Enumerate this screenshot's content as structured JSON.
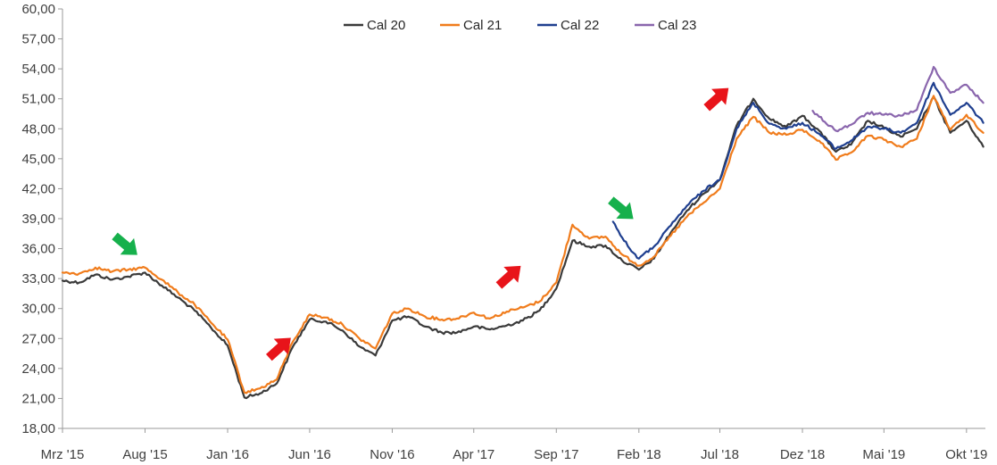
{
  "chart_data": {
    "type": "line",
    "title": "",
    "xlabel": "",
    "ylabel": "",
    "ylim": [
      18,
      60
    ],
    "y_ticks": [
      18,
      21,
      24,
      27,
      30,
      33,
      36,
      39,
      42,
      45,
      48,
      51,
      54,
      57,
      60
    ],
    "y_tick_labels": [
      "18,00",
      "21,00",
      "24,00",
      "27,00",
      "30,00",
      "33,00",
      "36,00",
      "39,00",
      "42,00",
      "45,00",
      "48,00",
      "51,00",
      "54,00",
      "57,00",
      "60,00"
    ],
    "x_range": [
      "2015-03-01",
      "2019-11-05"
    ],
    "x_ticks": [
      {
        "date": "2015-03-01",
        "label": "Mrz '15"
      },
      {
        "date": "2015-08-01",
        "label": "Aug '15"
      },
      {
        "date": "2016-01-01",
        "label": "Jan '16"
      },
      {
        "date": "2016-06-01",
        "label": "Jun '16"
      },
      {
        "date": "2016-11-01",
        "label": "Nov '16"
      },
      {
        "date": "2017-04-01",
        "label": "Apr '17"
      },
      {
        "date": "2017-09-01",
        "label": "Sep '17"
      },
      {
        "date": "2018-02-01",
        "label": "Feb '18"
      },
      {
        "date": "2018-07-01",
        "label": "Jul '18"
      },
      {
        "date": "2018-12-01",
        "label": "Dez '18"
      },
      {
        "date": "2019-05-01",
        "label": "Mai '19"
      },
      {
        "date": "2019-10-01",
        "label": "Okt '19"
      }
    ],
    "grid": false,
    "legend_position": "top",
    "series": [
      {
        "name": "Cal 20",
        "color": "#3a3a3a",
        "points": [
          [
            "2015-03-01",
            32.8
          ],
          [
            "2015-04-01",
            32.6
          ],
          [
            "2015-05-01",
            33.4
          ],
          [
            "2015-06-01",
            32.9
          ],
          [
            "2015-07-01",
            33.2
          ],
          [
            "2015-08-01",
            33.6
          ],
          [
            "2015-09-01",
            32.3
          ],
          [
            "2015-10-01",
            31.1
          ],
          [
            "2015-11-01",
            29.8
          ],
          [
            "2015-12-01",
            28.1
          ],
          [
            "2016-01-01",
            26.3
          ],
          [
            "2016-02-01",
            21.1
          ],
          [
            "2016-03-01",
            21.5
          ],
          [
            "2016-04-01",
            22.5
          ],
          [
            "2016-05-01",
            26.2
          ],
          [
            "2016-06-01",
            28.9
          ],
          [
            "2016-07-01",
            28.7
          ],
          [
            "2016-08-01",
            27.8
          ],
          [
            "2016-09-01",
            26.2
          ],
          [
            "2016-10-01",
            25.3
          ],
          [
            "2016-11-01",
            28.8
          ],
          [
            "2016-12-01",
            29.2
          ],
          [
            "2017-01-01",
            28.2
          ],
          [
            "2017-02-01",
            27.6
          ],
          [
            "2017-03-01",
            27.6
          ],
          [
            "2017-04-01",
            28.2
          ],
          [
            "2017-05-01",
            27.9
          ],
          [
            "2017-06-01",
            28.3
          ],
          [
            "2017-07-01",
            28.8
          ],
          [
            "2017-08-01",
            29.8
          ],
          [
            "2017-09-01",
            32.0
          ],
          [
            "2017-10-01",
            36.8
          ],
          [
            "2017-11-01",
            36.2
          ],
          [
            "2017-12-01",
            36.3
          ],
          [
            "2018-01-01",
            34.8
          ],
          [
            "2018-02-01",
            33.9
          ],
          [
            "2018-03-01",
            35.0
          ],
          [
            "2018-04-01",
            37.6
          ],
          [
            "2018-05-01",
            39.8
          ],
          [
            "2018-06-01",
            41.5
          ],
          [
            "2018-07-01",
            42.9
          ],
          [
            "2018-08-01",
            48.3
          ],
          [
            "2018-09-01",
            51.0
          ],
          [
            "2018-10-01",
            49.0
          ],
          [
            "2018-11-01",
            48.2
          ],
          [
            "2018-12-01",
            49.3
          ],
          [
            "2019-01-01",
            47.8
          ],
          [
            "2019-02-01",
            45.7
          ],
          [
            "2019-03-01",
            46.4
          ],
          [
            "2019-04-01",
            48.8
          ],
          [
            "2019-05-01",
            48.1
          ],
          [
            "2019-06-01",
            47.2
          ],
          [
            "2019-07-01",
            48.0
          ],
          [
            "2019-08-01",
            51.2
          ],
          [
            "2019-09-01",
            47.6
          ],
          [
            "2019-10-01",
            48.8
          ],
          [
            "2019-11-01",
            46.2
          ]
        ]
      },
      {
        "name": "Cal 21",
        "color": "#f07c1c",
        "points": [
          [
            "2015-03-01",
            33.6
          ],
          [
            "2015-04-01",
            33.5
          ],
          [
            "2015-05-01",
            34.1
          ],
          [
            "2015-06-01",
            33.7
          ],
          [
            "2015-07-01",
            33.9
          ],
          [
            "2015-08-01",
            34.1
          ],
          [
            "2015-09-01",
            32.9
          ],
          [
            "2015-10-01",
            31.6
          ],
          [
            "2015-11-01",
            30.4
          ],
          [
            "2015-12-01",
            28.6
          ],
          [
            "2016-01-01",
            26.9
          ],
          [
            "2016-02-01",
            21.6
          ],
          [
            "2016-03-01",
            22.0
          ],
          [
            "2016-04-01",
            22.9
          ],
          [
            "2016-05-01",
            26.7
          ],
          [
            "2016-06-01",
            29.4
          ],
          [
            "2016-07-01",
            29.1
          ],
          [
            "2016-08-01",
            28.4
          ],
          [
            "2016-09-01",
            27.0
          ],
          [
            "2016-10-01",
            26.0
          ],
          [
            "2016-11-01",
            29.5
          ],
          [
            "2016-12-01",
            30.0
          ],
          [
            "2017-01-01",
            29.2
          ],
          [
            "2017-02-01",
            28.9
          ],
          [
            "2017-03-01",
            29.0
          ],
          [
            "2017-04-01",
            29.6
          ],
          [
            "2017-05-01",
            29.0
          ],
          [
            "2017-06-01",
            29.7
          ],
          [
            "2017-07-01",
            30.1
          ],
          [
            "2017-08-01",
            30.7
          ],
          [
            "2017-09-01",
            32.6
          ],
          [
            "2017-10-01",
            38.4
          ],
          [
            "2017-11-01",
            37.0
          ],
          [
            "2017-12-01",
            37.2
          ],
          [
            "2018-01-01",
            35.4
          ],
          [
            "2018-02-01",
            34.3
          ],
          [
            "2018-03-01",
            35.2
          ],
          [
            "2018-04-01",
            37.3
          ],
          [
            "2018-05-01",
            39.2
          ],
          [
            "2018-06-01",
            40.6
          ],
          [
            "2018-07-01",
            42.0
          ],
          [
            "2018-08-01",
            47.0
          ],
          [
            "2018-09-01",
            49.2
          ],
          [
            "2018-10-01",
            47.6
          ],
          [
            "2018-11-01",
            47.4
          ],
          [
            "2018-12-01",
            47.9
          ],
          [
            "2019-01-01",
            46.8
          ],
          [
            "2019-02-01",
            44.9
          ],
          [
            "2019-03-01",
            45.6
          ],
          [
            "2019-04-01",
            47.3
          ],
          [
            "2019-05-01",
            46.9
          ],
          [
            "2019-06-01",
            46.2
          ],
          [
            "2019-07-01",
            47.0
          ],
          [
            "2019-08-01",
            51.3
          ],
          [
            "2019-09-01",
            47.9
          ],
          [
            "2019-10-01",
            49.4
          ],
          [
            "2019-11-01",
            47.6
          ]
        ]
      },
      {
        "name": "Cal 22",
        "color": "#1f3f8f",
        "points": [
          [
            "2017-12-15",
            38.7
          ],
          [
            "2018-01-01",
            37.1
          ],
          [
            "2018-01-15",
            36.0
          ],
          [
            "2018-02-01",
            35.0
          ],
          [
            "2018-03-01",
            36.2
          ],
          [
            "2018-04-01",
            38.3
          ],
          [
            "2018-05-01",
            40.3
          ],
          [
            "2018-06-01",
            41.8
          ],
          [
            "2018-07-01",
            42.9
          ],
          [
            "2018-08-01",
            48.0
          ],
          [
            "2018-09-01",
            50.6
          ],
          [
            "2018-10-01",
            48.5
          ],
          [
            "2018-11-01",
            48.0
          ],
          [
            "2018-12-01",
            48.6
          ],
          [
            "2019-01-01",
            47.5
          ],
          [
            "2019-02-01",
            46.0
          ],
          [
            "2019-03-01",
            46.8
          ],
          [
            "2019-04-01",
            48.2
          ],
          [
            "2019-05-01",
            48.0
          ],
          [
            "2019-06-01",
            47.6
          ],
          [
            "2019-07-01",
            48.6
          ],
          [
            "2019-08-01",
            52.6
          ],
          [
            "2019-09-01",
            49.4
          ],
          [
            "2019-10-01",
            50.6
          ],
          [
            "2019-11-01",
            48.6
          ]
        ]
      },
      {
        "name": "Cal 23",
        "color": "#8a66ad",
        "points": [
          [
            "2018-12-20",
            49.8
          ],
          [
            "2019-01-01",
            49.2
          ],
          [
            "2019-02-01",
            47.8
          ],
          [
            "2019-03-01",
            48.4
          ],
          [
            "2019-04-01",
            49.6
          ],
          [
            "2019-05-01",
            49.4
          ],
          [
            "2019-06-01",
            49.3
          ],
          [
            "2019-07-01",
            49.9
          ],
          [
            "2019-08-01",
            54.2
          ],
          [
            "2019-09-01",
            51.6
          ],
          [
            "2019-10-01",
            52.4
          ],
          [
            "2019-11-01",
            50.6
          ]
        ]
      }
    ],
    "annotations": [
      {
        "type": "arrow",
        "direction": "down-right",
        "color": "#16b04c",
        "date": "2015-06-25",
        "y": 36.4
      },
      {
        "type": "arrow",
        "direction": "up-right",
        "color": "#e8141a",
        "date": "2016-04-05",
        "y": 26.0
      },
      {
        "type": "arrow",
        "direction": "up-right",
        "color": "#e8141a",
        "date": "2017-06-05",
        "y": 33.2
      },
      {
        "type": "arrow",
        "direction": "down-right",
        "color": "#16b04c",
        "date": "2017-12-30",
        "y": 40.0
      },
      {
        "type": "arrow",
        "direction": "up-right",
        "color": "#e8141a",
        "date": "2018-06-25",
        "y": 51.0
      }
    ]
  }
}
